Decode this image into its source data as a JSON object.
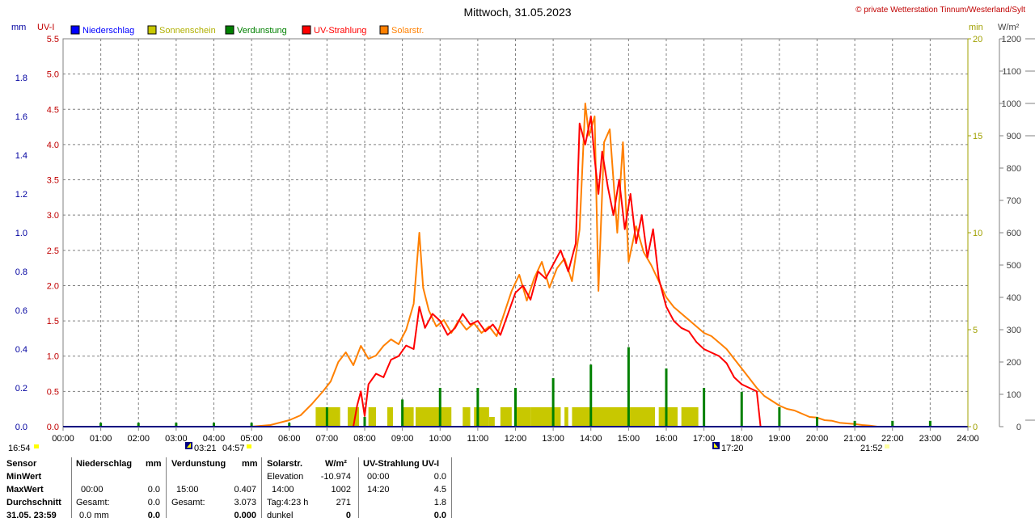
{
  "header": {
    "title": "Mittwoch, 31.05.2023",
    "copyright": "© private Wetterstation Tinnum/Westerland/Sylt",
    "unit_mm": "mm",
    "unit_uvi": "UV-I",
    "unit_min": "min",
    "unit_wm2": "W/m²"
  },
  "legend": [
    {
      "label": "Niederschlag",
      "color": "#0000ff"
    },
    {
      "label": "Sonnenschein",
      "color": "#c8c800"
    },
    {
      "label": "Verdunstung",
      "color": "#008000"
    },
    {
      "label": "UV-Strahlung",
      "color": "#ff0000"
    },
    {
      "label": "Solarstr.",
      "color": "#ff8000"
    }
  ],
  "sun_marks": {
    "left": "16:54",
    "sunrise_a": "03:21",
    "sunrise_b": "04:57",
    "sunset_a": "17:20",
    "sunset_b": "21:52"
  },
  "chart_data": {
    "type": "line",
    "title": "Mittwoch, 31.05.2023",
    "x_ticks": [
      "00:00",
      "01:00",
      "02:00",
      "03:00",
      "04:00",
      "05:00",
      "06:00",
      "07:00",
      "08:00",
      "09:00",
      "10:00",
      "11:00",
      "12:00",
      "13:00",
      "14:00",
      "15:00",
      "16:00",
      "17:00",
      "18:00",
      "19:00",
      "20:00",
      "21:00",
      "22:00",
      "23:00",
      "24:00"
    ],
    "axes": {
      "mm": {
        "label": "mm",
        "ticks": [
          "0.0",
          "0.2",
          "0.4",
          "0.6",
          "0.8",
          "1.0",
          "1.2",
          "1.4",
          "1.6",
          "1.8"
        ],
        "range": [
          0,
          2.0
        ],
        "color": "#0000a0"
      },
      "uvi": {
        "label": "UV-I",
        "ticks": [
          "0.0",
          "0.5",
          "1.0",
          "1.5",
          "2.0",
          "2.5",
          "3.0",
          "3.5",
          "4.0",
          "4.5",
          "5.0",
          "5.5"
        ],
        "range": [
          0,
          5.5
        ],
        "color": "#c00000"
      },
      "min": {
        "label": "min",
        "ticks": [
          "0",
          "5",
          "10",
          "15",
          "20"
        ],
        "range": [
          0,
          20
        ],
        "color": "#a0a000"
      },
      "wm2": {
        "label": "W/m²",
        "ticks": [
          "0",
          "100",
          "200",
          "300",
          "400",
          "500",
          "600",
          "700",
          "800",
          "900",
          "1000",
          "1100",
          "1200"
        ],
        "range": [
          0,
          1200
        ],
        "color": "#404040"
      }
    },
    "grid": true,
    "series": [
      {
        "name": "Solarstr.",
        "axis": "wm2",
        "color": "#ff8000",
        "points": [
          [
            5.0,
            0
          ],
          [
            5.5,
            5
          ],
          [
            6.0,
            20
          ],
          [
            6.3,
            35
          ],
          [
            6.6,
            70
          ],
          [
            6.9,
            110
          ],
          [
            7.1,
            140
          ],
          [
            7.3,
            200
          ],
          [
            7.5,
            230
          ],
          [
            7.7,
            190
          ],
          [
            7.9,
            250
          ],
          [
            8.1,
            210
          ],
          [
            8.3,
            220
          ],
          [
            8.5,
            250
          ],
          [
            8.7,
            270
          ],
          [
            8.9,
            255
          ],
          [
            9.1,
            300
          ],
          [
            9.3,
            380
          ],
          [
            9.45,
            600
          ],
          [
            9.55,
            430
          ],
          [
            9.7,
            360
          ],
          [
            9.9,
            310
          ],
          [
            10.1,
            330
          ],
          [
            10.3,
            290
          ],
          [
            10.5,
            330
          ],
          [
            10.7,
            300
          ],
          [
            10.9,
            320
          ],
          [
            11.1,
            290
          ],
          [
            11.3,
            310
          ],
          [
            11.5,
            280
          ],
          [
            11.7,
            350
          ],
          [
            11.9,
            420
          ],
          [
            12.1,
            470
          ],
          [
            12.3,
            390
          ],
          [
            12.5,
            460
          ],
          [
            12.7,
            510
          ],
          [
            12.9,
            430
          ],
          [
            13.1,
            490
          ],
          [
            13.3,
            520
          ],
          [
            13.5,
            450
          ],
          [
            13.7,
            610
          ],
          [
            13.85,
            1000
          ],
          [
            13.95,
            900
          ],
          [
            14.1,
            960
          ],
          [
            14.2,
            420
          ],
          [
            14.35,
            880
          ],
          [
            14.5,
            920
          ],
          [
            14.7,
            600
          ],
          [
            14.85,
            880
          ],
          [
            15.0,
            510
          ],
          [
            15.2,
            620
          ],
          [
            15.4,
            540
          ],
          [
            15.6,
            500
          ],
          [
            15.8,
            450
          ],
          [
            16.0,
            400
          ],
          [
            16.2,
            370
          ],
          [
            16.4,
            350
          ],
          [
            16.6,
            330
          ],
          [
            16.8,
            310
          ],
          [
            17.0,
            290
          ],
          [
            17.2,
            280
          ],
          [
            17.4,
            260
          ],
          [
            17.6,
            240
          ],
          [
            17.8,
            210
          ],
          [
            18.0,
            180
          ],
          [
            18.2,
            150
          ],
          [
            18.4,
            120
          ],
          [
            18.6,
            95
          ],
          [
            18.8,
            80
          ],
          [
            19.0,
            65
          ],
          [
            19.2,
            55
          ],
          [
            19.4,
            50
          ],
          [
            19.6,
            40
          ],
          [
            19.8,
            30
          ],
          [
            20.0,
            28
          ],
          [
            20.2,
            20
          ],
          [
            20.4,
            18
          ],
          [
            20.6,
            12
          ],
          [
            20.8,
            10
          ],
          [
            21.0,
            8
          ],
          [
            21.2,
            5
          ],
          [
            21.4,
            3
          ],
          [
            21.6,
            0
          ]
        ]
      },
      {
        "name": "UV-Strahlung",
        "axis": "uvi",
        "color": "#ff0000",
        "points": [
          [
            7.7,
            0
          ],
          [
            7.8,
            0.3
          ],
          [
            7.9,
            0.5
          ],
          [
            8.0,
            0.15
          ],
          [
            8.1,
            0.6
          ],
          [
            8.3,
            0.75
          ],
          [
            8.5,
            0.7
          ],
          [
            8.7,
            0.95
          ],
          [
            8.9,
            1.0
          ],
          [
            9.1,
            1.15
          ],
          [
            9.3,
            1.1
          ],
          [
            9.45,
            1.7
          ],
          [
            9.6,
            1.4
          ],
          [
            9.8,
            1.6
          ],
          [
            10.0,
            1.5
          ],
          [
            10.2,
            1.3
          ],
          [
            10.4,
            1.4
          ],
          [
            10.6,
            1.6
          ],
          [
            10.8,
            1.45
          ],
          [
            11.0,
            1.5
          ],
          [
            11.2,
            1.35
          ],
          [
            11.4,
            1.45
          ],
          [
            11.6,
            1.3
          ],
          [
            11.8,
            1.6
          ],
          [
            12.0,
            1.9
          ],
          [
            12.2,
            2.0
          ],
          [
            12.4,
            1.8
          ],
          [
            12.6,
            2.2
          ],
          [
            12.8,
            2.1
          ],
          [
            13.0,
            2.3
          ],
          [
            13.2,
            2.5
          ],
          [
            13.4,
            2.2
          ],
          [
            13.6,
            2.6
          ],
          [
            13.7,
            4.3
          ],
          [
            13.85,
            4.0
          ],
          [
            14.0,
            4.4
          ],
          [
            14.1,
            3.8
          ],
          [
            14.2,
            3.3
          ],
          [
            14.3,
            3.9
          ],
          [
            14.45,
            3.4
          ],
          [
            14.6,
            3.0
          ],
          [
            14.75,
            3.5
          ],
          [
            14.9,
            2.8
          ],
          [
            15.05,
            3.3
          ],
          [
            15.2,
            2.6
          ],
          [
            15.35,
            3.0
          ],
          [
            15.5,
            2.4
          ],
          [
            15.65,
            2.8
          ],
          [
            15.8,
            2.1
          ],
          [
            16.0,
            1.7
          ],
          [
            16.2,
            1.5
          ],
          [
            16.4,
            1.4
          ],
          [
            16.6,
            1.35
          ],
          [
            16.8,
            1.2
          ],
          [
            17.0,
            1.1
          ],
          [
            17.2,
            1.05
          ],
          [
            17.4,
            1.0
          ],
          [
            17.6,
            0.9
          ],
          [
            17.8,
            0.7
          ],
          [
            18.0,
            0.6
          ],
          [
            18.2,
            0.55
          ],
          [
            18.4,
            0.5
          ],
          [
            18.5,
            0
          ]
        ]
      }
    ],
    "verdunstung_spikes": [
      [
        1.0,
        0.02
      ],
      [
        2.0,
        0.02
      ],
      [
        3.0,
        0.02
      ],
      [
        4.0,
        0.02
      ],
      [
        5.0,
        0.02
      ],
      [
        6.0,
        0.02
      ],
      [
        7.0,
        0.1
      ],
      [
        8.0,
        0.05
      ],
      [
        9.0,
        0.14
      ],
      [
        10.0,
        0.2
      ],
      [
        11.0,
        0.2
      ],
      [
        12.0,
        0.2
      ],
      [
        13.0,
        0.25
      ],
      [
        14.0,
        0.32
      ],
      [
        15.0,
        0.41
      ],
      [
        16.0,
        0.3
      ],
      [
        17.0,
        0.2
      ],
      [
        18.0,
        0.18
      ],
      [
        19.0,
        0.1
      ],
      [
        20.0,
        0.05
      ],
      [
        21.0,
        0.03
      ],
      [
        22.0,
        0.03
      ],
      [
        23.0,
        0.03
      ]
    ],
    "sonnenschein_bars": [
      [
        6.7,
        7.0,
        1
      ],
      [
        7.0,
        7.35,
        1
      ],
      [
        7.55,
        7.85,
        1
      ],
      [
        8.1,
        8.3,
        1
      ],
      [
        8.6,
        8.75,
        1
      ],
      [
        9.0,
        9.3,
        1
      ],
      [
        9.35,
        10.3,
        1
      ],
      [
        10.6,
        10.8,
        1
      ],
      [
        10.9,
        11.3,
        1
      ],
      [
        11.3,
        11.45,
        0.5
      ],
      [
        11.6,
        11.9,
        1
      ],
      [
        12.0,
        12.4,
        1
      ],
      [
        12.4,
        13.2,
        1
      ],
      [
        13.3,
        13.4,
        1
      ],
      [
        13.5,
        15.7,
        1
      ],
      [
        15.8,
        16.3,
        1
      ],
      [
        16.4,
        16.85,
        1
      ]
    ]
  },
  "stats": {
    "headers": {
      "sensor": "Sensor",
      "niederschlag": "Niederschlag",
      "mm1": "mm",
      "verdunstung": "Verdunstung",
      "mm2": "mm",
      "solar": "Solarstr.",
      "wm2": "W/m²",
      "uv": "UV-Strahlung UV-I"
    },
    "rows": [
      {
        "label": "MinWert",
        "nied_t": "",
        "nied_v": "",
        "verd_t": "",
        "verd_v": "",
        "sol_t": "Elevation",
        "sol_v": "-10.974",
        "uv_t": "00:00",
        "uv_v": "0.0"
      },
      {
        "label": "MaxWert",
        "nied_t": "00:00",
        "nied_v": "0.0",
        "verd_t": "15:00",
        "verd_v": "0.407",
        "sol_t": "14:00",
        "sol_v": "1002",
        "uv_t": "14:20",
        "uv_v": "4.5"
      },
      {
        "label": "Durchschnitt",
        "nied_t": "Gesamt:",
        "nied_v": "0.0",
        "verd_t": "Gesamt:",
        "verd_v": "3.073",
        "sol_t": "Tag:4:23 h",
        "sol_v": "271",
        "uv_t": "",
        "uv_v": "1.8"
      },
      {
        "label": "31.05. 23:59",
        "nied_t": "0.0 mm",
        "nied_v": "0.0",
        "verd_t": "",
        "verd_v": "0.000",
        "sol_t": "dunkel",
        "sol_v": "0",
        "uv_t": "",
        "uv_v": "0.0"
      }
    ]
  }
}
